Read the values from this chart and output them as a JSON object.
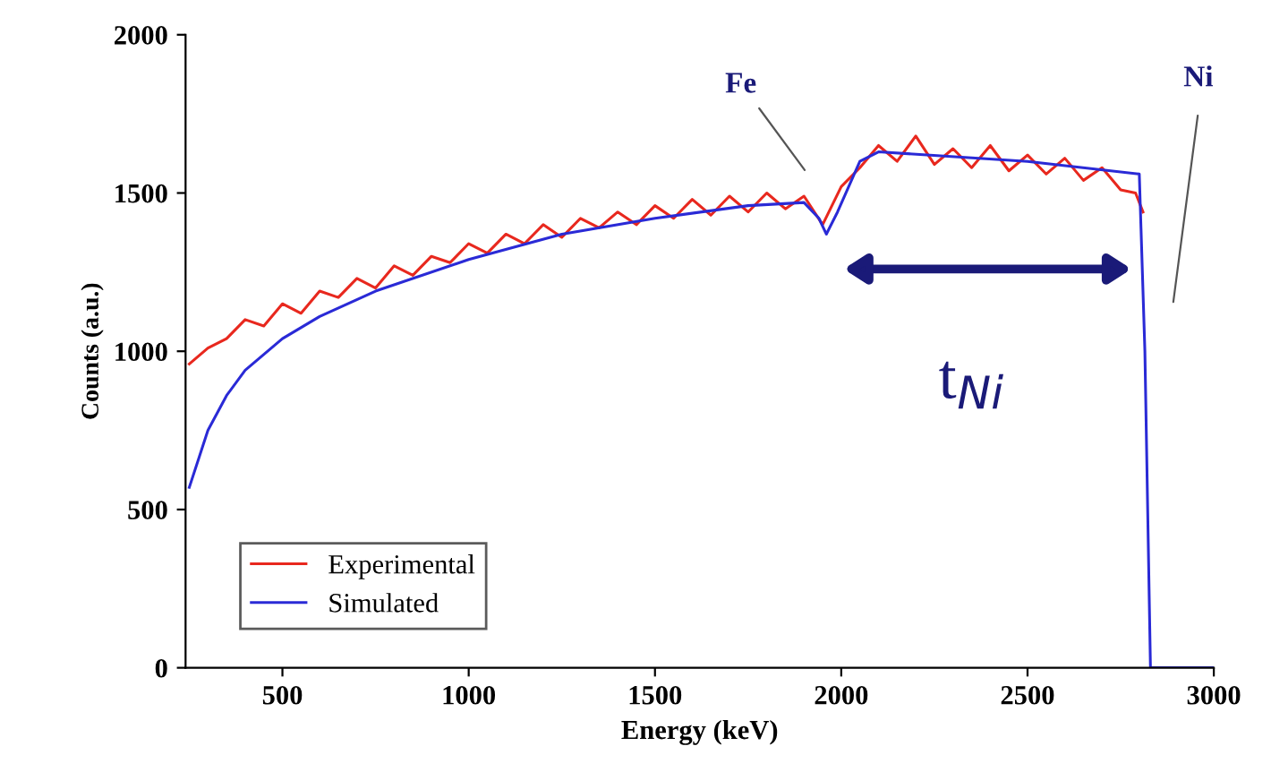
{
  "chart_data": {
    "type": "line",
    "xlabel": "Energy (keV)",
    "ylabel": "Counts (a.u.)",
    "xlim": [
      240,
      3000
    ],
    "ylim": [
      0,
      2000
    ],
    "xticks": [
      500,
      1000,
      1500,
      2000,
      2500,
      3000
    ],
    "yticks": [
      0,
      500,
      1000,
      1500,
      2000
    ],
    "grid": false,
    "legend": "bottom left",
    "marker": "none",
    "line_style": "solid",
    "series": [
      {
        "name": "Experimental",
        "color": "#e8281e",
        "x": [
          250,
          300,
          350,
          400,
          450,
          500,
          550,
          600,
          650,
          700,
          750,
          800,
          850,
          900,
          950,
          1000,
          1050,
          1100,
          1150,
          1200,
          1250,
          1300,
          1350,
          1400,
          1450,
          1500,
          1550,
          1600,
          1650,
          1700,
          1750,
          1800,
          1850,
          1900,
          1950,
          2000,
          2050,
          2100,
          2150,
          2200,
          2250,
          2300,
          2350,
          2400,
          2450,
          2500,
          2550,
          2600,
          2650,
          2700,
          2750,
          2790,
          2810
        ],
        "values": [
          960,
          1010,
          1040,
          1100,
          1080,
          1150,
          1120,
          1190,
          1170,
          1230,
          1200,
          1270,
          1240,
          1300,
          1280,
          1340,
          1310,
          1370,
          1340,
          1400,
          1360,
          1420,
          1390,
          1440,
          1400,
          1460,
          1420,
          1480,
          1430,
          1490,
          1440,
          1500,
          1450,
          1490,
          1400,
          1520,
          1580,
          1650,
          1600,
          1680,
          1590,
          1640,
          1580,
          1650,
          1570,
          1620,
          1560,
          1610,
          1540,
          1580,
          1510,
          1500,
          1440
        ]
      },
      {
        "name": "Simulated",
        "color": "#2a2ad6",
        "x": [
          250,
          300,
          350,
          400,
          500,
          600,
          750,
          1000,
          1250,
          1500,
          1750,
          1900,
          1940,
          1960,
          1990,
          2050,
          2100,
          2500,
          2800,
          2815,
          2830,
          3000
        ],
        "values": [
          570,
          750,
          860,
          940,
          1040,
          1110,
          1190,
          1290,
          1370,
          1420,
          1460,
          1470,
          1420,
          1370,
          1440,
          1600,
          1630,
          1600,
          1560,
          1000,
          0,
          0
        ]
      }
    ],
    "annotations": [
      "Fe",
      "Ni",
      "t$_{Ni}$"
    ]
  }
}
